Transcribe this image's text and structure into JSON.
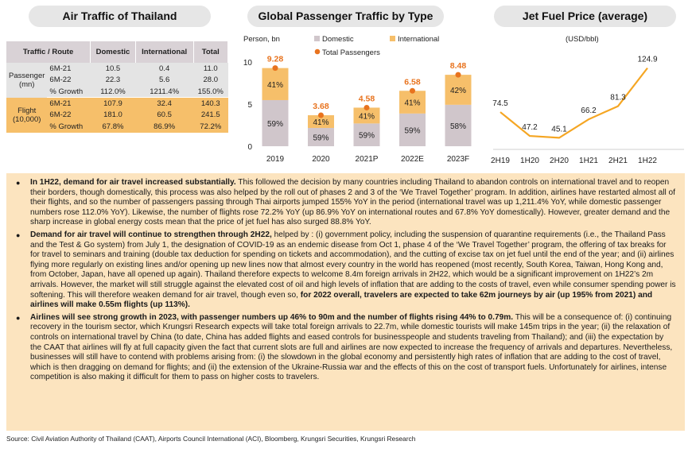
{
  "panels": {
    "air_traffic_title": "Air Traffic of Thailand",
    "global_title": "Global Passenger Traffic by Type",
    "jetfuel_title": "Jet Fuel Price (average)"
  },
  "table": {
    "headers": [
      "Traffic / Route",
      "Domestic",
      "International",
      "Total"
    ],
    "groups": [
      {
        "label": "Passenger (mn)",
        "rows": [
          {
            "period": "6M-21",
            "domestic": "10.5",
            "international": "0.4",
            "total": "11.0"
          },
          {
            "period": "6M-22",
            "domestic": "22.3",
            "international": "5.6",
            "total": "28.0"
          },
          {
            "period": "% Growth",
            "domestic": "112.0%",
            "international": "1211.4%",
            "total": "155.0%"
          }
        ]
      },
      {
        "label": "Flight (10,000)",
        "rows": [
          {
            "period": "6M-21",
            "domestic": "107.9",
            "international": "32.4",
            "total": "140.3"
          },
          {
            "period": "6M-22",
            "domestic": "181.0",
            "international": "60.5",
            "total": "241.5"
          },
          {
            "period": "% Growth",
            "domestic": "67.8%",
            "international": "86.9%",
            "total": "72.2%"
          }
        ]
      }
    ]
  },
  "colors": {
    "domestic": "#d0c6cb",
    "international": "#f6bf6a",
    "total": "#e8731e",
    "fuel_line": "#f5a623",
    "accent_box": "#fce4bf"
  },
  "chart_data": [
    {
      "type": "bar",
      "title": "Global Passenger Traffic by Type",
      "ylabel": "Person, bn",
      "ylim": [
        0,
        10
      ],
      "yticks": [
        "0",
        "5",
        "10"
      ],
      "categories": [
        "2019",
        "2020",
        "2021P",
        "2022E",
        "2023F"
      ],
      "totals": [
        9.28,
        3.68,
        4.58,
        6.58,
        8.48
      ],
      "total_labels": [
        "9.28",
        "3.68",
        "4.58",
        "6.58",
        "8.48"
      ],
      "series": [
        {
          "name": "Domestic",
          "shares": [
            0.59,
            0.59,
            0.59,
            0.59,
            0.58
          ],
          "labels": [
            "59%",
            "59%",
            "59%",
            "59%",
            "58%"
          ]
        },
        {
          "name": "International",
          "shares": [
            0.41,
            0.41,
            0.41,
            0.41,
            0.42
          ],
          "labels": [
            "41%",
            "41%",
            "41%",
            "41%",
            "42%"
          ]
        },
        {
          "name": "Total Passengers",
          "type": "point"
        }
      ]
    },
    {
      "type": "line",
      "title": "Jet Fuel Price (average)",
      "ylabel": "(USD/bbl)",
      "categories": [
        "2H19",
        "1H20",
        "2H20",
        "1H21",
        "2H21",
        "1H22"
      ],
      "values": [
        74.5,
        47.2,
        45.1,
        66.2,
        81.3,
        124.9
      ],
      "labels": [
        "74.5",
        "47.2",
        "45.1",
        "66.2",
        "81.3",
        "124.9"
      ],
      "ylim": [
        30,
        130
      ]
    }
  ],
  "text": {
    "p1_bold": "In 1H22, demand for air travel increased substantially.",
    "p1": " This  followed the decision by many countries including Thailand to abandon controls on international travel and to reopen their borders, though domestically, this process was also helped by the roll out of phases 2 and 3 of the ‘We Travel Together’ program. In addition, airlines have restarted almost all of their flights, and so the number of passengers passing through Thai airports jumped 155% YoY in the period (international travel was up 1,211.4% YoY, while domestic passenger numbers rose 112.0% YoY). Likewise, the number of flights rose 72.2% YoY (up 86.9% YoY on international routes and 67.8% YoY domestically). However, greater demand and the sharp increase in global energy costs mean that the price of jet fuel has also surged 88.8% YoY.",
    "p2_bold": "Demand for air travel will continue to strengthen through 2H22,",
    "p2": " helped by : (i) government policy, including the suspension of quarantine requirements (i.e., the Thailand Pass and the Test & Go system) from July 1, the designation of COVID-19 as an endemic disease from Oct 1, phase 4 of the ‘We Travel Together’ program, the offering of tax breaks for for travel to seminars and training (double tax deduction for spending on tickets and accommodation), and the cutting of excise tax on jet fuel until the end of the year; and (ii) airlines flying more regularly on existing lines and/or opening up new lines now that almost every country in the world has reopened (most recently, South Korea, Taiwan, Hong Kong and, from October, Japan, have all opened up again). Thailand therefore expects to welcome 8.4m foreign arrivals in 2H22, which would be a significant improvement on 1H22’s 2m arrivals. However, the market will still struggle against the elevated cost of oil and high levels of inflation that are adding to the costs of travel, even while consumer spending power is softening. This will therefore weaken demand for air travel, though even so, ",
    "p2_bold_end": "for 2022 overall, travelers are expected to take 62m journeys by air (up 195% from 2021) and airlines will make 0.55m flights (up 113%).",
    "p3_bold": "Airlines will see strong growth in 2023, with passenger numbers up 46% to 90m and the number of flights rising 44% to 0.79m.",
    "p3": " This will be a consequence of: (i) continuing recovery in the tourism sector, which Krungsri Research expects will take total foreign arrivals to 22.7m, while domestic tourists will make 145m trips in the year; (ii) the relaxation of controls on international travel by China (to date, China has added flights and eased controls for businesspeople and students traveling from Thailand); and (iii) the expectation by the CAAT that airlines will fly at full capacity given the fact that current slots are full and airlines are now expected to increase the frequency of arrivals and departures. Nevertheless, businesses will still have to contend with problems arising from: (i) the slowdown in the global economy and persistently high rates of inflation that are adding to the cost of travel, which is then dragging on demand for flights; and (ii) the extension of the Ukraine-Russia war and the effects of this on the cost of transport fuels. Unfortunately for airlines, intense competition is also making it difficult for them to pass on higher costs to travelers."
  },
  "source": "Source: Civil Aviation Authority of Thailand (CAAT), Airports Council International (ACI), Bloomberg, Krungsri Securities, Krungsri Research"
}
